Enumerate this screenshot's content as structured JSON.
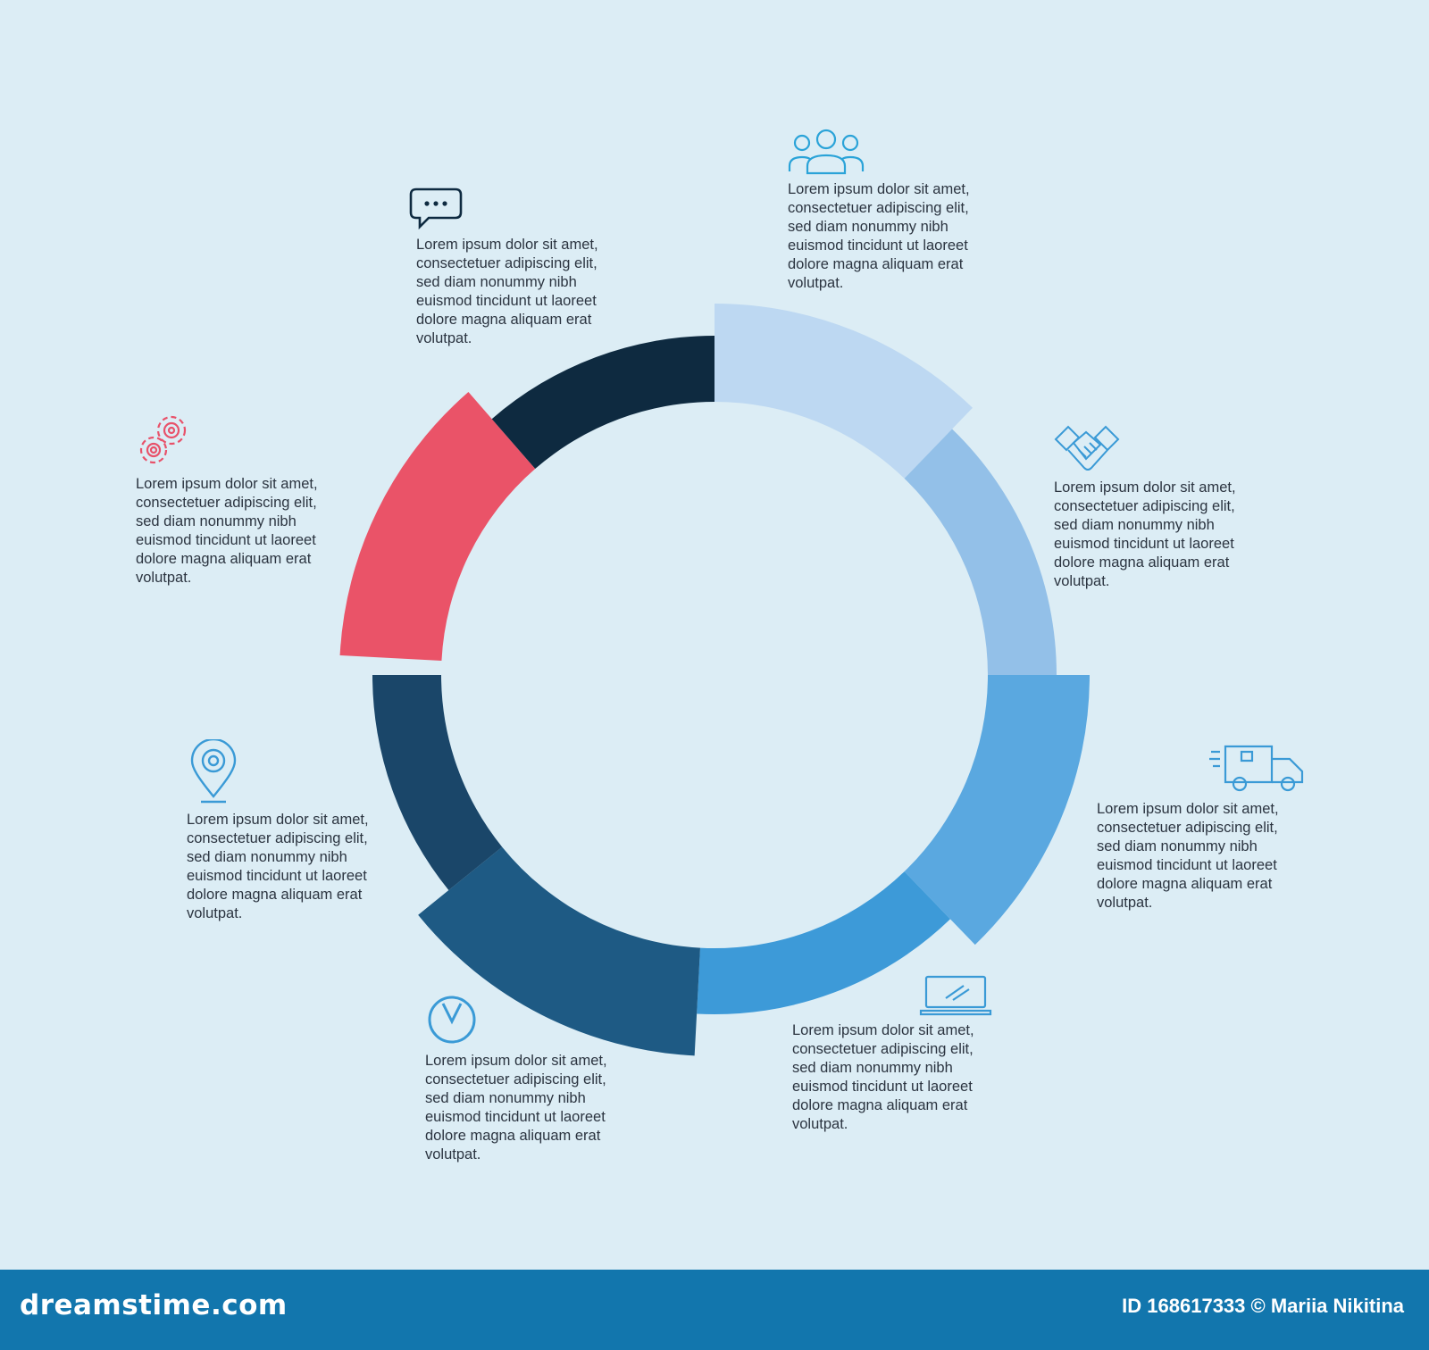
{
  "diagram": {
    "segments": [
      {
        "name": "segment-1",
        "color": "#bdd8f2",
        "from": 0,
        "to": 44
      },
      {
        "name": "segment-2",
        "color": "#93c0e8",
        "from": 44,
        "to": 90
      },
      {
        "name": "segment-3",
        "color": "#5aa8e0",
        "from": 90,
        "to": 136
      },
      {
        "name": "segment-4",
        "color": "#3d9ad8",
        "from": 136,
        "to": 183
      },
      {
        "name": "segment-5",
        "color": "#1e5a84",
        "from": 183,
        "to": 231
      },
      {
        "name": "segment-6",
        "color": "#1a4669",
        "from": 231,
        "to": 270
      },
      {
        "name": "segment-7",
        "color": "#ea5368",
        "from": 273,
        "to": 319
      },
      {
        "name": "segment-8",
        "color": "#0e2a40",
        "from": 319,
        "to": 360
      }
    ],
    "blocks": [
      {
        "icon": "team-icon",
        "text": "Lorem ipsum dolor sit amet,\nconsectetuer adipiscing elit,\nsed diam nonummy nibh\neuismod tincidunt ut laoreet\ndolore magna aliquam erat\nvolutpat."
      },
      {
        "icon": "handshake-icon",
        "text": "Lorem ipsum dolor sit amet,\nconsectetuer adipiscing elit,\nsed diam nonummy nibh\neuismod tincidunt ut laoreet\ndolore magna aliquam erat\nvolutpat."
      },
      {
        "icon": "delivery-truck-icon",
        "text": "Lorem ipsum dolor sit amet,\nconsectetuer adipiscing elit,\nsed diam nonummy nibh\neuismod tincidunt ut laoreet\ndolore magna aliquam erat\nvolutpat."
      },
      {
        "icon": "laptop-icon",
        "text": "Lorem ipsum dolor sit amet,\nconsectetuer adipiscing elit,\nsed diam nonummy nibh\neuismod tincidunt ut laoreet\ndolore magna aliquam erat\nvolutpat."
      },
      {
        "icon": "clock-icon",
        "text": "Lorem ipsum dolor sit amet,\nconsectetuer adipiscing elit,\nsed diam nonummy nibh\neuismod tincidunt ut laoreet\ndolore magna aliquam erat\nvolutpat."
      },
      {
        "icon": "location-pin-icon",
        "text": "Lorem ipsum dolor sit amet,\nconsectetuer adipiscing elit,\nsed diam nonummy nibh\neuismod tincidunt ut laoreet\ndolore magna aliquam erat\nvolutpat."
      },
      {
        "icon": "gears-icon",
        "text": "Lorem ipsum dolor sit amet,\nconsectetuer adipiscing elit,\nsed diam nonummy nibh\neuismod tincidunt ut laoreet\ndolore magna aliquam erat\nvolutpat."
      },
      {
        "icon": "chat-bubble-icon",
        "text": "Lorem ipsum dolor sit amet,\nconsectetuer adipiscing elit,\nsed diam nonummy nibh\neuismod tincidunt ut laoreet\ndolore magna aliquam erat\nvolutpat."
      }
    ]
  },
  "footer": {
    "brand": "dreamstime.com",
    "credit": "ID 168617333 © Mariia Nikitina"
  }
}
